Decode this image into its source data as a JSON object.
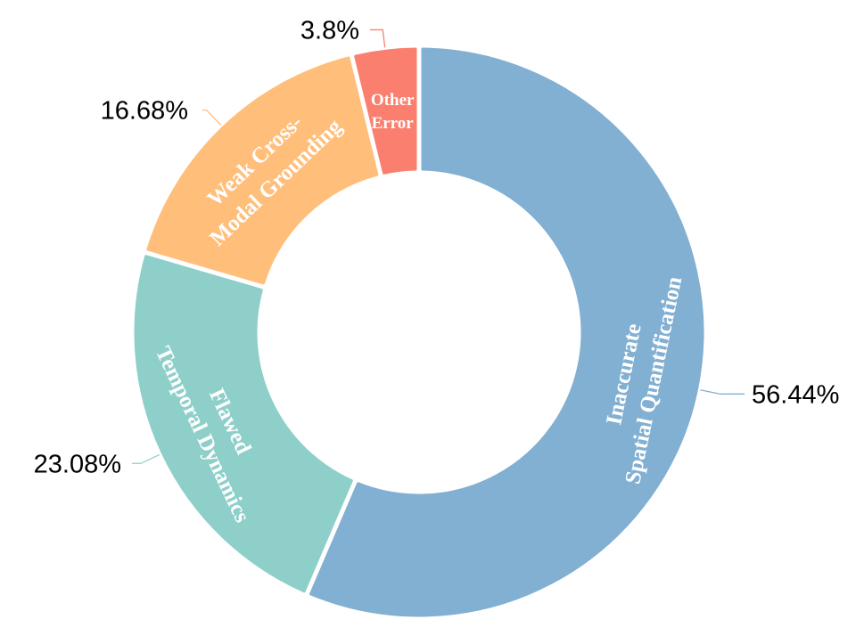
{
  "chart_data": {
    "type": "pie",
    "variant": "donut",
    "title": "",
    "slices": [
      {
        "name": "Inaccurate Spatial Quantification",
        "lines": [
          "Inaccurate",
          "Spatial Quantification"
        ],
        "value": 56.44,
        "label": "56.44%",
        "color": "#82B0D2"
      },
      {
        "name": "Flawed Temporal Dynamics",
        "lines": [
          "Flawed",
          "Temporal Dynamics"
        ],
        "value": 23.08,
        "label": "23.08%",
        "color": "#8ECFC9"
      },
      {
        "name": "Weak Cross-Modal Grounding",
        "lines": [
          "Weak Cross-",
          "Modal Grounding"
        ],
        "value": 16.68,
        "label": "16.68%",
        "color": "#FFBE7A"
      },
      {
        "name": "Other Error",
        "lines": [
          "Other",
          "Error"
        ],
        "value": 3.8,
        "label": "3.8%",
        "color": "#FA7F6F"
      }
    ]
  }
}
